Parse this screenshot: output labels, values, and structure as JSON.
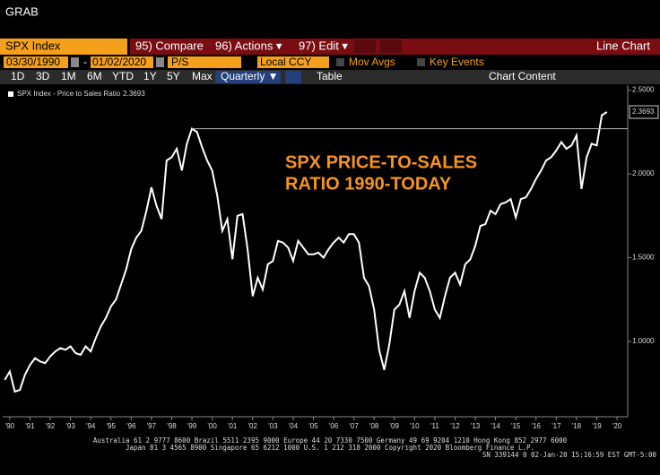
{
  "ui": {
    "grab": "GRAB",
    "ticker": "SPX Index",
    "menu": [
      "95) Compare",
      "96) Actions ▾",
      "97) Edit ▾"
    ],
    "chart_kind": "Line Chart",
    "start_date": "03/30/1990",
    "dash": "-",
    "end_date": "01/02/2020",
    "field": "P/S",
    "currency": "Local CCY",
    "mov_avgs": "Mov Avgs",
    "key_events": "Key Events",
    "ranges": [
      "1D",
      "3D",
      "1M",
      "6M",
      "YTD",
      "1Y",
      "5Y",
      "Max"
    ],
    "period": "Quarterly ▼",
    "table": "Table",
    "chart_content": "Chart Content",
    "footer": [
      "Australia 61 2 9777 8600 Brazil 5511 2395 9000 Europe 44 20 7330 7500 Germany 49 69 9204 1210 Hong Kong 852 2977 6000",
      "Japan 81 3 4565 8900      Singapore 65 6212 1000      U.S. 1 212 318 2000      Copyright 2020 Bloomberg Finance L.P.",
      "SN 339144 0 02-Jan-20 15:16:59 EST  GMT-5:00"
    ]
  },
  "chart_data": {
    "type": "line",
    "annotation": [
      "SPX PRICE-TO-SALES",
      "RATIO 1990-TODAY"
    ],
    "series": [
      {
        "name": "SPX Index - Price to Sales Ratio",
        "color": "#ffffff",
        "x": [
          1990.25,
          1990.5,
          1990.75,
          1991,
          1991.25,
          1991.5,
          1991.75,
          1992,
          1992.25,
          1992.5,
          1992.75,
          1993,
          1993.25,
          1993.5,
          1993.75,
          1994,
          1994.25,
          1994.5,
          1994.75,
          1995,
          1995.25,
          1995.5,
          1995.75,
          1996,
          1996.25,
          1996.5,
          1996.75,
          1997,
          1997.25,
          1997.5,
          1997.75,
          1998,
          1998.25,
          1998.5,
          1998.75,
          1999,
          1999.25,
          1999.5,
          1999.75,
          2000,
          2000.25,
          2000.5,
          2000.75,
          2001,
          2001.25,
          2001.5,
          2001.75,
          2002,
          2002.25,
          2002.5,
          2002.75,
          2003,
          2003.25,
          2003.5,
          2003.75,
          2004,
          2004.25,
          2004.5,
          2004.75,
          2005,
          2005.25,
          2005.5,
          2005.75,
          2006,
          2006.25,
          2006.5,
          2006.75,
          2007,
          2007.25,
          2007.5,
          2007.75,
          2008,
          2008.25,
          2008.5,
          2008.75,
          2009,
          2009.25,
          2009.5,
          2009.75,
          2010,
          2010.25,
          2010.5,
          2010.75,
          2011,
          2011.25,
          2011.5,
          2011.75,
          2012,
          2012.25,
          2012.5,
          2012.75,
          2013,
          2013.25,
          2013.5,
          2013.75,
          2014,
          2014.25,
          2014.5,
          2014.75,
          2015,
          2015.25,
          2015.5,
          2015.75,
          2016,
          2016.25,
          2016.5,
          2016.75,
          2017,
          2017.25,
          2017.5,
          2017.75,
          2018,
          2018.25,
          2018.5,
          2018.75,
          2019,
          2019.25,
          2019.5,
          2019.75,
          2020
        ],
        "values": [
          0.77,
          0.82,
          0.7,
          0.71,
          0.8,
          0.86,
          0.9,
          0.88,
          0.87,
          0.91,
          0.94,
          0.96,
          0.95,
          0.97,
          0.93,
          0.92,
          0.97,
          0.94,
          1.02,
          1.09,
          1.14,
          1.21,
          1.25,
          1.34,
          1.43,
          1.55,
          1.62,
          1.66,
          1.78,
          1.92,
          1.81,
          1.73,
          2.08,
          2.1,
          2.15,
          2.02,
          2.18,
          2.27,
          2.25,
          2.16,
          2.08,
          2.02,
          1.87,
          1.66,
          1.73,
          1.49,
          1.75,
          1.76,
          1.55,
          1.27,
          1.38,
          1.31,
          1.46,
          1.48,
          1.6,
          1.59,
          1.56,
          1.48,
          1.6,
          1.56,
          1.52,
          1.52,
          1.53,
          1.5,
          1.55,
          1.59,
          1.62,
          1.59,
          1.64,
          1.64,
          1.59,
          1.38,
          1.33,
          1.19,
          0.95,
          0.83,
          0.98,
          1.19,
          1.22,
          1.3,
          1.14,
          1.3,
          1.41,
          1.38,
          1.3,
          1.19,
          1.14,
          1.27,
          1.38,
          1.41,
          1.34,
          1.46,
          1.49,
          1.57,
          1.69,
          1.7,
          1.78,
          1.76,
          1.82,
          1.83,
          1.85,
          1.74,
          1.85,
          1.86,
          1.91,
          1.97,
          2.02,
          2.08,
          2.1,
          2.14,
          2.19,
          2.15,
          2.17,
          2.23,
          1.91,
          2.1,
          2.18,
          2.17,
          2.35,
          2.3693
        ]
      }
    ],
    "reference_line": 2.27,
    "xlim": [
      1990.15,
      2021.03
    ],
    "xticks": [
      {
        "value": 1990.5,
        "label": "'90"
      },
      {
        "value": 1991.5,
        "label": "'91"
      },
      {
        "value": 1992.5,
        "label": "'92"
      },
      {
        "value": 1993.5,
        "label": "'93"
      },
      {
        "value": 1994.5,
        "label": "'94"
      },
      {
        "value": 1995.5,
        "label": "'95"
      },
      {
        "value": 1996.5,
        "label": "'96"
      },
      {
        "value": 1997.5,
        "label": "'97"
      },
      {
        "value": 1998.5,
        "label": "'98"
      },
      {
        "value": 1999.5,
        "label": "'99"
      },
      {
        "value": 2000.5,
        "label": "'00"
      },
      {
        "value": 2001.5,
        "label": "'01"
      },
      {
        "value": 2002.5,
        "label": "'02"
      },
      {
        "value": 2003.5,
        "label": "'03"
      },
      {
        "value": 2004.5,
        "label": "'04"
      },
      {
        "value": 2005.5,
        "label": "'05"
      },
      {
        "value": 2006.5,
        "label": "'06"
      },
      {
        "value": 2007.5,
        "label": "'07"
      },
      {
        "value": 2008.5,
        "label": "'08"
      },
      {
        "value": 2009.5,
        "label": "'09"
      },
      {
        "value": 2010.5,
        "label": "'10"
      },
      {
        "value": 2011.5,
        "label": "'11"
      },
      {
        "value": 2012.5,
        "label": "'12"
      },
      {
        "value": 2013.5,
        "label": "'13"
      },
      {
        "value": 2014.5,
        "label": "'14"
      },
      {
        "value": 2015.5,
        "label": "'15"
      },
      {
        "value": 2016.5,
        "label": "'16"
      },
      {
        "value": 2017.5,
        "label": "'17"
      },
      {
        "value": 2018.5,
        "label": "'18"
      },
      {
        "value": 2019.5,
        "label": "'19"
      },
      {
        "value": 2020.5,
        "label": "'20"
      }
    ],
    "ylim": [
      0.55,
      2.53
    ],
    "yticks": [
      {
        "value": 1,
        "label": "1.0000"
      },
      {
        "value": 1.5,
        "label": "1.5000"
      },
      {
        "value": 2,
        "label": "2.0000"
      },
      {
        "value": 2.5,
        "label": "2.5000"
      }
    ],
    "grid": false
  }
}
